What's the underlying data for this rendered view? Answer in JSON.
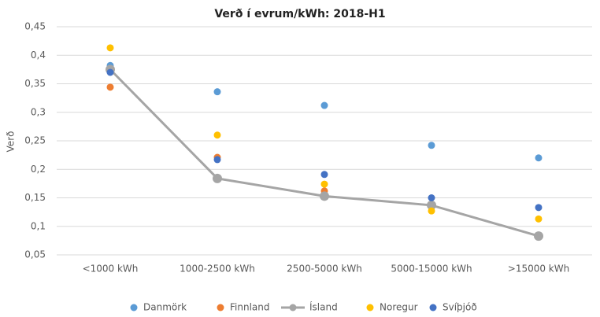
{
  "chart_data": {
    "type": "scatter-line",
    "title": "Verð í evrum/kWh: 2018-H1",
    "y_label": "Verð",
    "categories": [
      "<1000 kWh",
      "1000-2500 kWh",
      "2500-5000 kWh",
      "5000-15000 kWh",
      ">15000 kWh"
    ],
    "series": [
      {
        "name": "Danmörk",
        "color": "#5b9bd5",
        "style": "markers",
        "values": [
          0.382,
          0.336,
          0.312,
          0.242,
          0.22
        ]
      },
      {
        "name": "Finnland",
        "color": "#ed7d31",
        "style": "markers",
        "values": [
          0.344,
          0.221,
          0.162,
          0.138,
          null
        ]
      },
      {
        "name": "Ísland",
        "color": "#a5a5a5",
        "style": "line",
        "values": [
          0.375,
          0.184,
          0.153,
          0.137,
          0.083
        ]
      },
      {
        "name": "Noregur",
        "color": "#ffc000",
        "style": "markers",
        "values": [
          0.413,
          0.26,
          0.174,
          0.127,
          0.113
        ]
      },
      {
        "name": "Svíþjóð",
        "color": "#4472c4",
        "style": "markers",
        "values": [
          0.37,
          0.217,
          0.191,
          0.15,
          0.133
        ]
      }
    ],
    "ylim": [
      0.05,
      0.45
    ],
    "yticks": [
      {
        "value": 0.05,
        "label": "0,05"
      },
      {
        "value": 0.1,
        "label": "0,1"
      },
      {
        "value": 0.15,
        "label": "0,15"
      },
      {
        "value": 0.2,
        "label": "0,2"
      },
      {
        "value": 0.25,
        "label": "0,25"
      },
      {
        "value": 0.3,
        "label": "0,3"
      },
      {
        "value": 0.35,
        "label": "0,35"
      },
      {
        "value": 0.4,
        "label": "0,4"
      },
      {
        "value": 0.45,
        "label": "0,45"
      }
    ],
    "grid": true,
    "legend": "bottom"
  }
}
